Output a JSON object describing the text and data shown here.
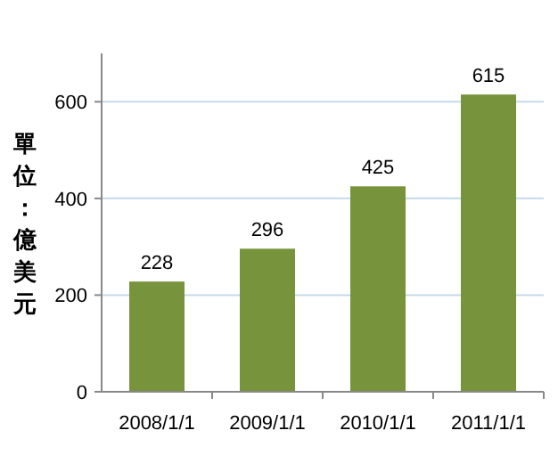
{
  "chart_data": {
    "type": "bar",
    "ylabel": "單位：億美元",
    "categories": [
      "2008/1/1",
      "2009/1/1",
      "2010/1/1",
      "2011/1/1"
    ],
    "values": [
      228,
      296,
      425,
      615
    ],
    "color": "#77933c",
    "ylim": [
      0,
      700
    ],
    "yticks": [
      0,
      200,
      400,
      600
    ],
    "grid": "y",
    "data_labels": true
  }
}
